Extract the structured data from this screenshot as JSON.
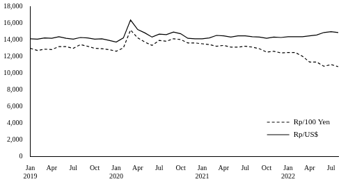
{
  "chart_data": {
    "type": "line",
    "categories": [
      "Jan 2019",
      null,
      null,
      "Apr",
      null,
      null,
      "Jul",
      null,
      null,
      "Oct",
      null,
      null,
      "Jan 2020",
      null,
      null,
      "Apr",
      null,
      null,
      "Jul",
      null,
      null,
      "Oct",
      null,
      null,
      "Jan 2021",
      null,
      null,
      "Apr",
      null,
      null,
      "Jul",
      null,
      null,
      "Oct",
      null,
      null,
      "Jan 2022",
      null,
      null,
      "Apr",
      null,
      null,
      "Jul",
      null
    ],
    "series": [
      {
        "name": "Rp/100 Yen",
        "color": "#000000",
        "line_style": "dashed",
        "values": [
          12950,
          12700,
          12850,
          12800,
          13150,
          13150,
          12950,
          13400,
          13200,
          12950,
          12900,
          12800,
          12600,
          13000,
          15150,
          14200,
          13700,
          13300,
          13900,
          13800,
          14100,
          14000,
          13600,
          13600,
          13500,
          13400,
          13200,
          13300,
          13100,
          13100,
          13200,
          13100,
          12900,
          12500,
          12600,
          12400,
          12450,
          12450,
          12000,
          11300,
          11300,
          10800,
          11000,
          10750
        ]
      },
      {
        "name": "Rp/US$",
        "color": "#000000",
        "line_style": "solid",
        "values": [
          14100,
          14050,
          14200,
          14150,
          14350,
          14150,
          14050,
          14250,
          14200,
          14050,
          14100,
          13900,
          13700,
          14200,
          16350,
          15200,
          14800,
          14300,
          14650,
          14600,
          14900,
          14700,
          14150,
          14100,
          14100,
          14200,
          14500,
          14450,
          14300,
          14450,
          14450,
          14350,
          14300,
          14150,
          14300,
          14250,
          14350,
          14350,
          14350,
          14450,
          14550,
          14850,
          14950,
          14850
        ]
      }
    ],
    "ylim": [
      0,
      18000
    ],
    "yticks": [
      0,
      {
        "value": 2000,
        "label": "2,000"
      },
      {
        "value": 4000,
        "label": "4,000"
      },
      {
        "value": 6000,
        "label": "6,000"
      },
      {
        "value": 8000,
        "label": "8,000"
      },
      {
        "value": 10000,
        "label": "10,000"
      },
      {
        "value": 12000,
        "label": "12,000"
      },
      {
        "value": 14000,
        "label": "14,000"
      },
      {
        "value": 16000,
        "label": "16,000"
      },
      {
        "value": 18000,
        "label": "18,000"
      }
    ],
    "grid": false,
    "legend": "lower right"
  }
}
